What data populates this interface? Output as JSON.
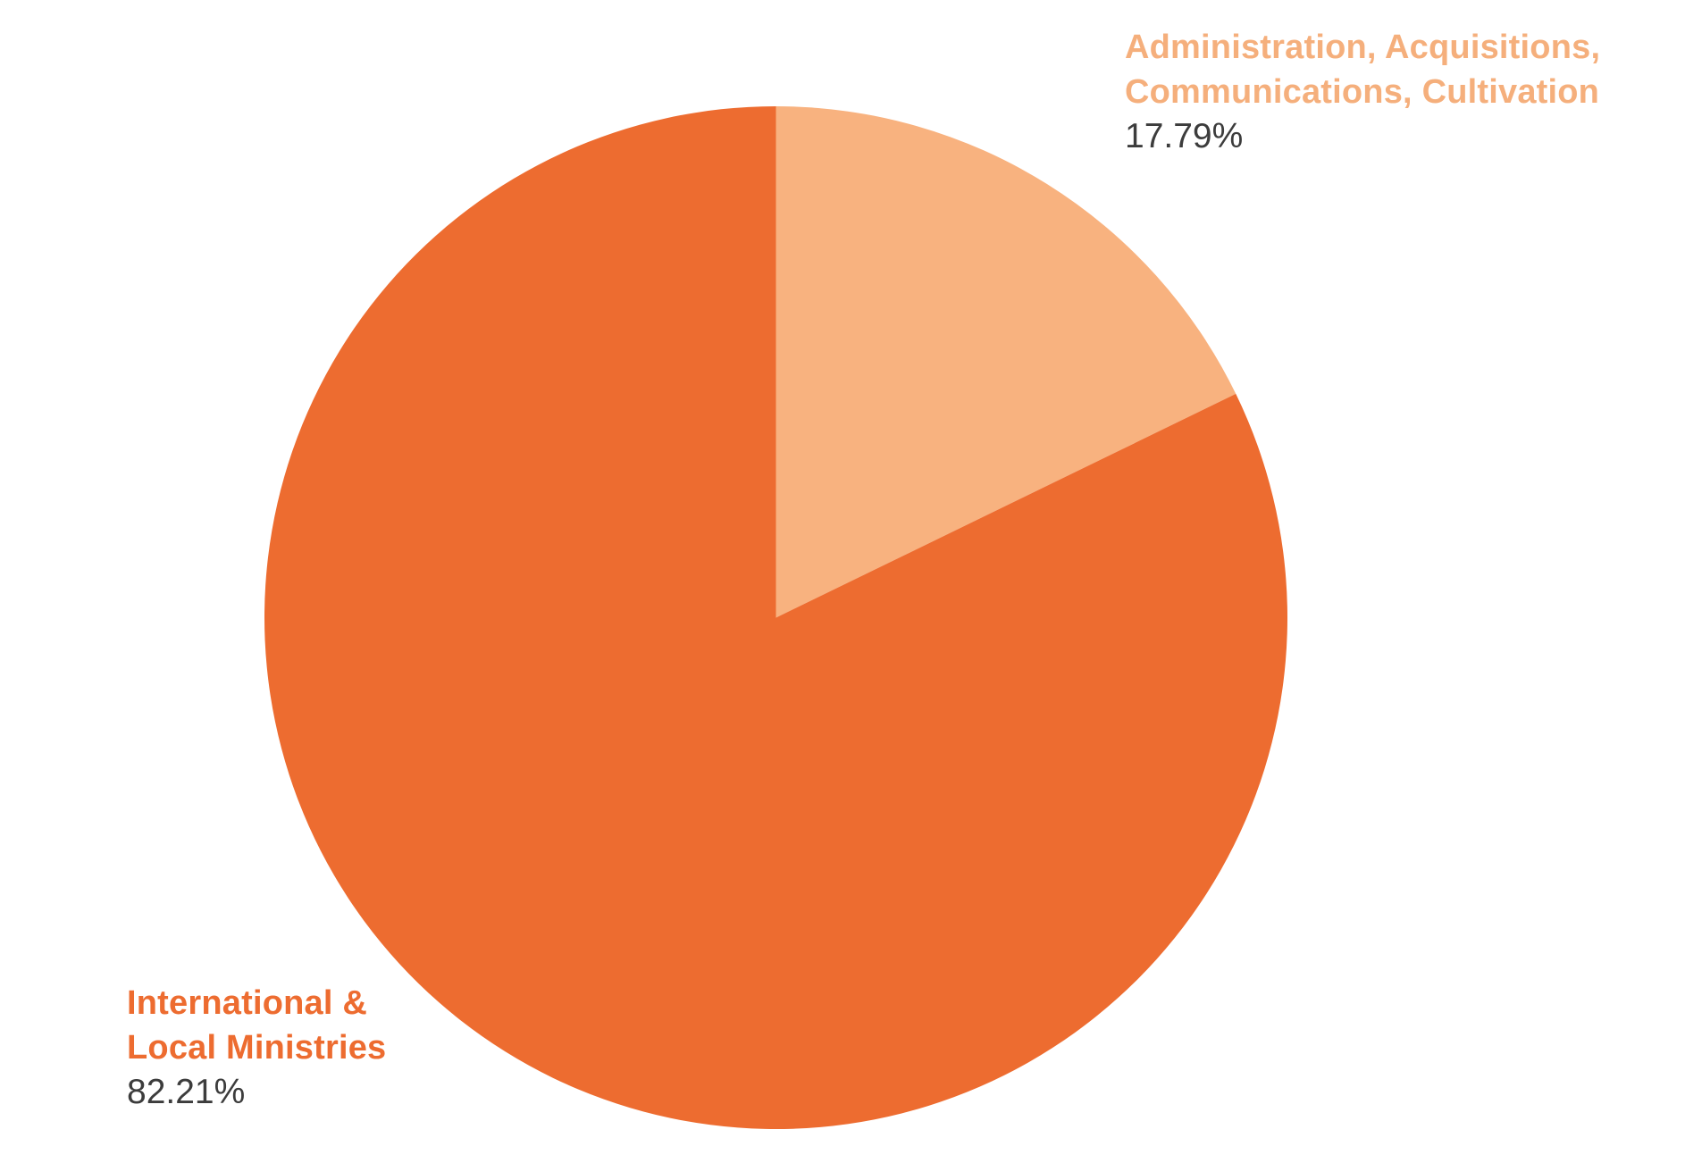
{
  "chart_data": {
    "type": "pie",
    "title": "",
    "legend_position": "none",
    "start_angle": "12-oclock",
    "direction": "clockwise",
    "slices": [
      {
        "label": "Administration, Acquisitions, Communications, Cultivation",
        "value": 17.79,
        "display_value": "17.79%",
        "color": "#F8B27F"
      },
      {
        "label": "International & Local Ministries",
        "value": 82.21,
        "display_value": "82.21%",
        "color": "#ED6C30"
      }
    ]
  },
  "labels": {
    "admin": {
      "line1": "Administration, Acquisitions,",
      "line2": "Communications, Cultivation",
      "pct": "17.79%",
      "text_color": "#F5AF7C"
    },
    "ministries": {
      "line1": "International &",
      "line2": "Local Ministries",
      "pct": "82.21%",
      "text_color": "#ED6C30"
    }
  },
  "colors": {
    "background": "#FFFFFF",
    "value_text": "#3C3C3C",
    "slice_dark": "#ED6C30",
    "slice_light": "#F8B27F"
  }
}
